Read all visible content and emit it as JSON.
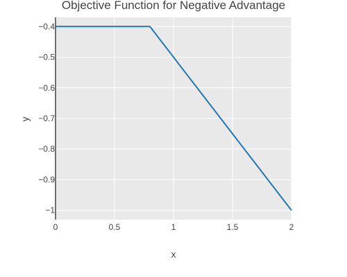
{
  "chart_data": {
    "type": "line",
    "title": "Objective Function for Negative Advantage",
    "xlabel": "x",
    "ylabel": "y",
    "xlim": [
      0,
      2
    ],
    "ylim": [
      -1.03,
      -0.37
    ],
    "xticks": [
      0,
      0.5,
      1,
      1.5,
      2
    ],
    "xtick_labels": [
      "0",
      "0.5",
      "1",
      "1.5",
      "2"
    ],
    "yticks": [
      -0.4,
      -0.5,
      -0.6,
      -0.7,
      -0.8,
      -0.9,
      -1
    ],
    "ytick_labels": [
      "−0.4",
      "−0.5",
      "−0.6",
      "−0.7",
      "−0.8",
      "−0.9",
      "−1"
    ],
    "grid": true,
    "plot_background": "#e9e9e9",
    "grid_color": "#ffffff",
    "series": [
      {
        "color": "#1f77b4",
        "x": [
          0,
          0.8,
          2
        ],
        "y": [
          -0.4,
          -0.4,
          -1
        ]
      }
    ]
  }
}
